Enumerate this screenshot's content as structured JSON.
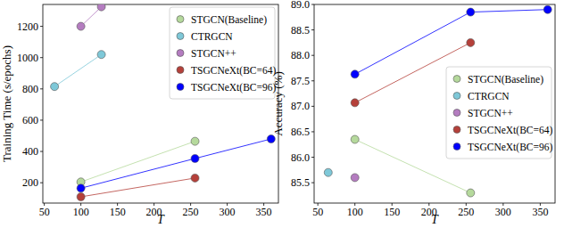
{
  "chart_data": [
    {
      "type": "line",
      "xlabel": "T",
      "ylabel": "Training Time (s/epochs)",
      "xlim": [
        48,
        370
      ],
      "xticks": [
        50,
        100,
        150,
        200,
        250,
        300,
        350
      ],
      "ylim": [
        70,
        1340
      ],
      "yticks": [
        200,
        400,
        600,
        800,
        1000,
        1200
      ],
      "legend": "upper right",
      "series": [
        {
          "name": "STGCN(Baseline)",
          "color": "#b5d99c",
          "marker": "circle",
          "x": [
            100,
            256
          ],
          "values": [
            205,
            465
          ]
        },
        {
          "name": "CTRGCN",
          "color": "#7ec8d8",
          "marker": "circle",
          "x": [
            64,
            128
          ],
          "values": [
            815,
            1020
          ]
        },
        {
          "name": "STGCN++",
          "color": "#b47cc0",
          "marker": "circle",
          "x": [
            100,
            128
          ],
          "values": [
            1200,
            1325
          ]
        },
        {
          "name": "TSGCNeXt(BC=64)",
          "color": "#b5403a",
          "marker": "circle",
          "x": [
            100,
            256
          ],
          "values": [
            110,
            230
          ]
        },
        {
          "name": "TSGCNeXt(BC=96)",
          "color": "#0000ff",
          "marker": "circle",
          "x": [
            100,
            256,
            360
          ],
          "values": [
            165,
            355,
            480
          ]
        }
      ]
    },
    {
      "type": "line",
      "xlabel": "T",
      "ylabel": "Accuracy (%)",
      "xlim": [
        45,
        370
      ],
      "xticks": [
        50,
        100,
        150,
        200,
        250,
        300,
        350
      ],
      "ylim": [
        85.1,
        89.0
      ],
      "yticks": [
        85.5,
        {
          "value": 86,
          "label": "86.0"
        },
        86.5,
        {
          "value": 87,
          "label": "87.0"
        },
        87.5,
        {
          "value": 88,
          "label": "88.0"
        },
        88.5,
        {
          "value": 89,
          "label": "89.0"
        }
      ],
      "legend": "right",
      "series": [
        {
          "name": "STGCN(Baseline)",
          "color": "#b5d99c",
          "marker": "circle",
          "x": [
            100,
            256
          ],
          "values": [
            86.35,
            85.3
          ]
        },
        {
          "name": "CTRGCN",
          "color": "#7ec8d8",
          "marker": "circle",
          "x": [
            64
          ],
          "values": [
            85.7
          ]
        },
        {
          "name": "STGCN++",
          "color": "#b47cc0",
          "marker": "circle",
          "x": [
            100
          ],
          "values": [
            85.6
          ]
        },
        {
          "name": "TSGCNeXt(BC=64)",
          "color": "#b5403a",
          "marker": "circle",
          "x": [
            100,
            256
          ],
          "values": [
            87.07,
            88.25
          ]
        },
        {
          "name": "TSGCNeXt(BC=96)",
          "color": "#0000ff",
          "marker": "circle",
          "x": [
            100,
            256,
            360
          ],
          "values": [
            87.63,
            88.85,
            88.9
          ]
        }
      ]
    }
  ]
}
